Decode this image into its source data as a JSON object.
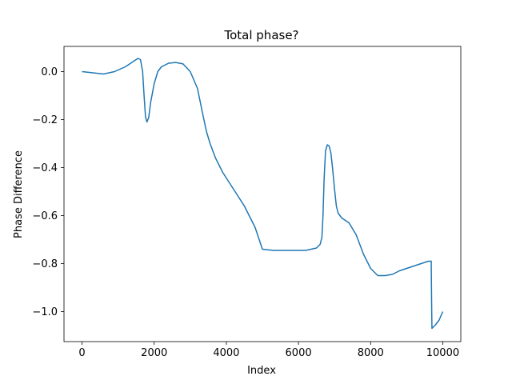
{
  "chart_data": {
    "type": "line",
    "title": "Total phase?",
    "xlabel": "Index",
    "ylabel": "Phase Difference",
    "xlim": [
      -500,
      10500
    ],
    "ylim": [
      -1.125,
      0.105
    ],
    "xticks": [
      0,
      2000,
      4000,
      6000,
      8000,
      10000
    ],
    "xtick_labels": [
      "0",
      "2000",
      "4000",
      "6000",
      "8000",
      "10000"
    ],
    "yticks": [
      0.0,
      -0.2,
      -0.4,
      -0.6,
      -0.8,
      -1.0
    ],
    "ytick_labels": [
      "0.0",
      "−0.2",
      "−0.4",
      "−0.6",
      "−0.8",
      "−1.0"
    ],
    "grid": false,
    "color": "#1f77b4",
    "series": [
      {
        "x": [
          0,
          300,
          600,
          900,
          1200,
          1400,
          1550,
          1620,
          1680,
          1720,
          1760,
          1800,
          1850,
          1900,
          2000,
          2100,
          2200,
          2400,
          2600,
          2800,
          3000,
          3200,
          3350,
          3450,
          3550,
          3700,
          3900,
          4200,
          4500,
          4800,
          5000,
          5300,
          5600,
          5900,
          6200,
          6500,
          6600,
          6650,
          6680,
          6710,
          6750,
          6800,
          6850,
          6900,
          6950,
          7000,
          7050,
          7100,
          7200,
          7400,
          7600,
          7800,
          8000,
          8200,
          8400,
          8600,
          8800,
          9000,
          9300,
          9600,
          9680,
          9690,
          9700,
          9800,
          9900,
          10000
        ],
        "y": [
          0.0,
          -0.005,
          -0.01,
          0.0,
          0.02,
          0.04,
          0.055,
          0.05,
          0.0,
          -0.1,
          -0.19,
          -0.21,
          -0.19,
          -0.13,
          -0.05,
          0.0,
          0.02,
          0.035,
          0.038,
          0.032,
          0.0,
          -0.07,
          -0.18,
          -0.25,
          -0.3,
          -0.36,
          -0.42,
          -0.49,
          -0.56,
          -0.65,
          -0.74,
          -0.745,
          -0.745,
          -0.745,
          -0.745,
          -0.735,
          -0.72,
          -0.69,
          -0.6,
          -0.45,
          -0.33,
          -0.305,
          -0.31,
          -0.34,
          -0.41,
          -0.49,
          -0.56,
          -0.59,
          -0.61,
          -0.63,
          -0.68,
          -0.76,
          -0.82,
          -0.85,
          -0.85,
          -0.845,
          -0.83,
          -0.82,
          -0.805,
          -0.79,
          -0.79,
          -0.95,
          -1.07,
          -1.055,
          -1.035,
          -1.0
        ]
      }
    ]
  }
}
